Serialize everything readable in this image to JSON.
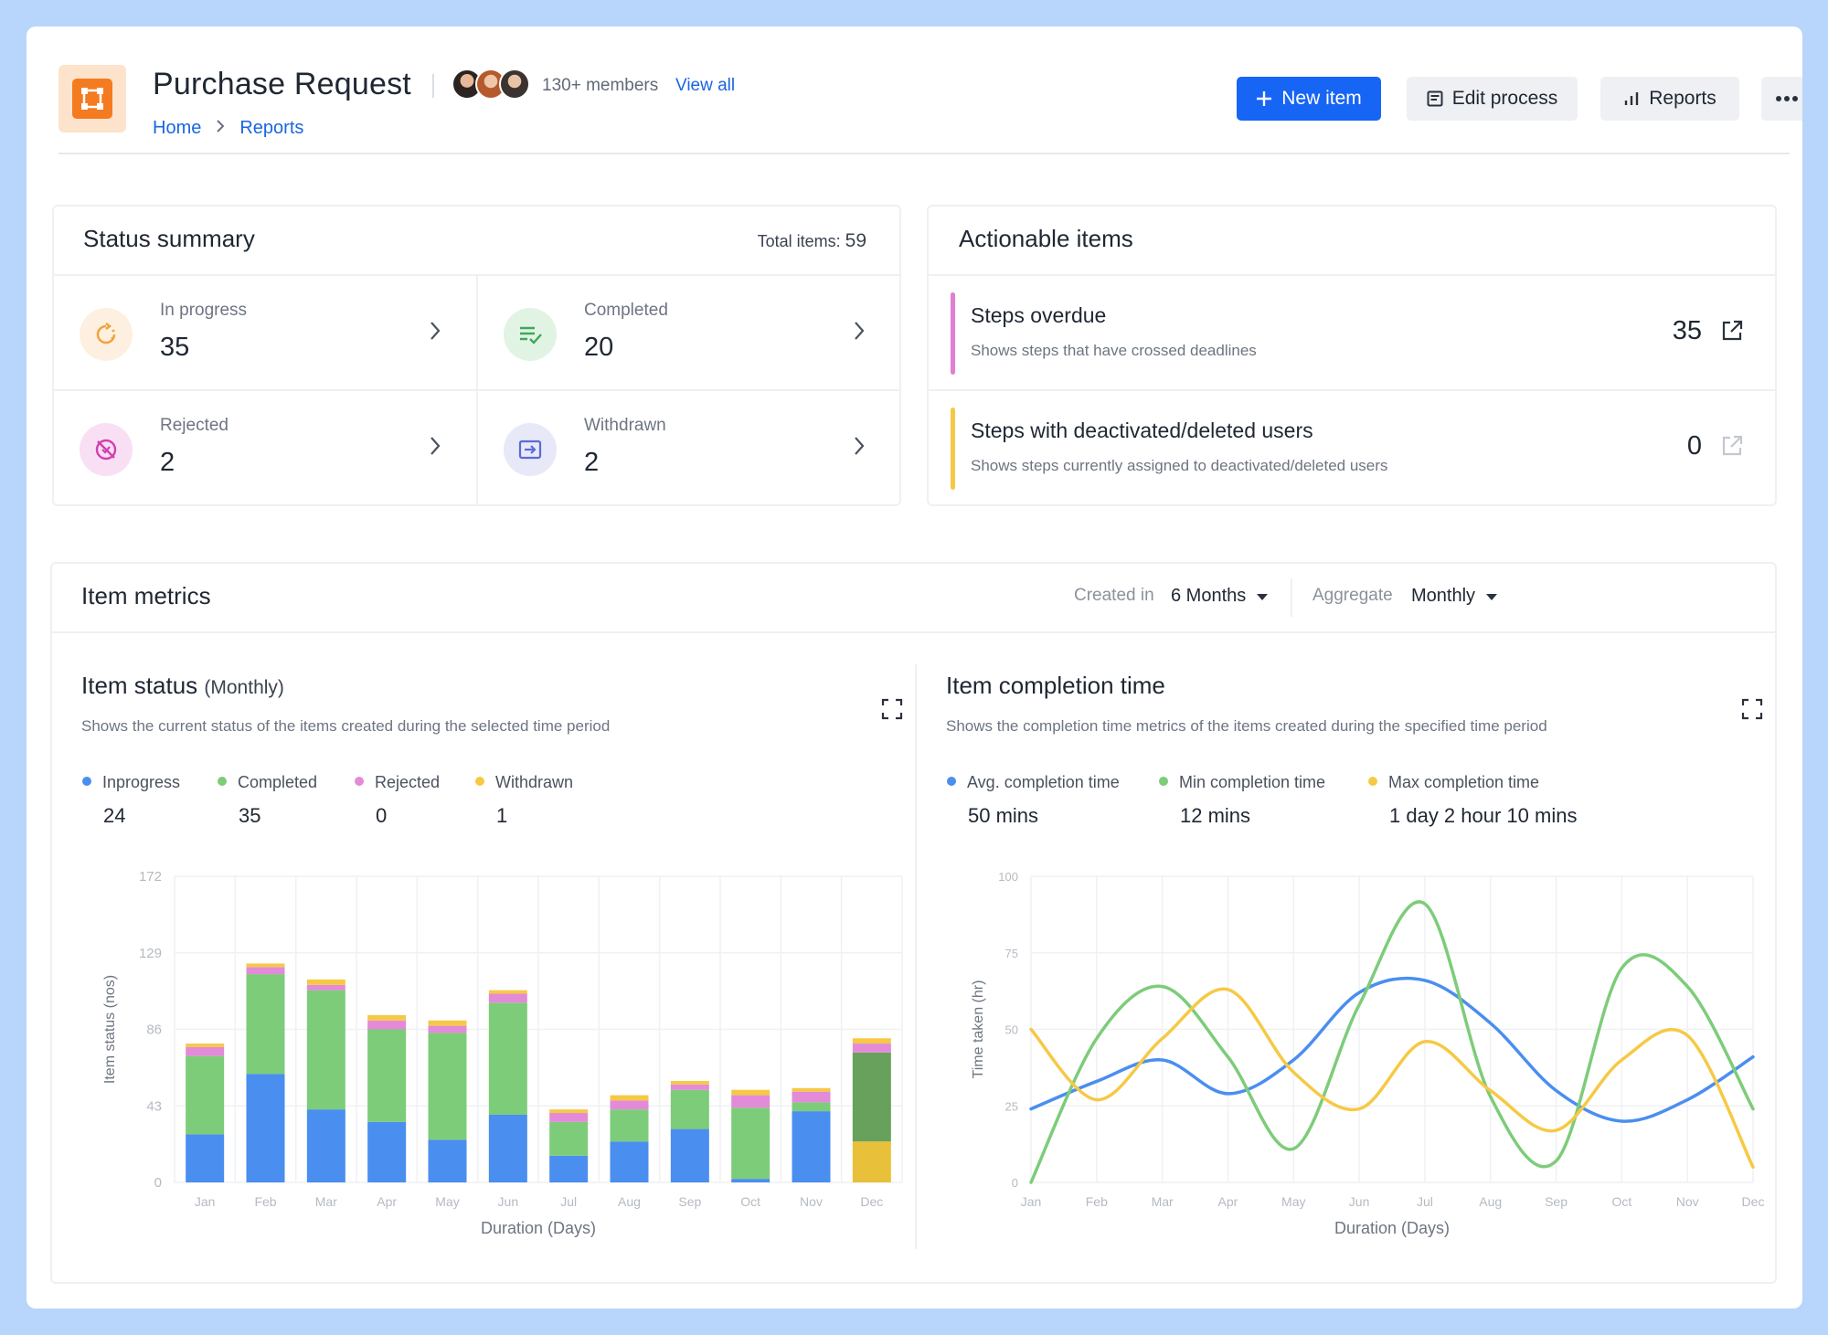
{
  "header": {
    "title": "Purchase Request",
    "members": "130+ members",
    "view_all": "View all",
    "breadcrumb": [
      "Home",
      "Reports"
    ],
    "new_item": "New item",
    "edit_process": "Edit process",
    "reports": "Reports"
  },
  "status_summary": {
    "title": "Status summary",
    "total_label": "Total items:",
    "total_value": "59",
    "items": [
      {
        "label": "In progress",
        "value": "35",
        "color": "#f2a33a"
      },
      {
        "label": "Completed",
        "value": "20",
        "color": "#3fa85a"
      },
      {
        "label": "Rejected",
        "value": "2",
        "color": "#d23fb0"
      },
      {
        "label": "Withdrawn",
        "value": "2",
        "color": "#5b6ad6"
      }
    ]
  },
  "actionable": {
    "title": "Actionable items",
    "items": [
      {
        "title": "Steps overdue",
        "desc": "Shows steps that have crossed deadlines",
        "value": "35",
        "color": "#e07fd4"
      },
      {
        "title": "Steps with deactivated/deleted users",
        "desc": "Shows steps currently assigned to deactivated/deleted users",
        "value": "0",
        "color": "#f6c945"
      }
    ]
  },
  "metrics": {
    "title": "Item metrics",
    "created_in_label": "Created in",
    "created_in_value": "6 Months",
    "aggregate_label": "Aggregate",
    "aggregate_value": "Monthly"
  },
  "status_chart": {
    "title": "Item status",
    "subtitle": "(Monthly)",
    "desc": "Shows the current status of the items created during the selected time period",
    "legend": [
      {
        "name": "Inprogress",
        "value": "24",
        "color": "#4a8ef0"
      },
      {
        "name": "Completed",
        "value": "35",
        "color": "#7dcc79"
      },
      {
        "name": "Rejected",
        "value": "0",
        "color": "#e38ad8"
      },
      {
        "name": "Withdrawn",
        "value": "1",
        "color": "#f6c945"
      }
    ]
  },
  "time_chart": {
    "title": "Item completion time",
    "desc": "Shows the completion time metrics of the items created during the specified time period",
    "legend": [
      {
        "name": "Avg. completion time",
        "value": "50 mins",
        "color": "#4a8ef0"
      },
      {
        "name": "Min completion time",
        "value": "12 mins",
        "color": "#7dcc79"
      },
      {
        "name": "Max completion time",
        "value": "1 day 2 hour 10 mins",
        "color": "#f6c945"
      }
    ]
  },
  "chart_data": [
    {
      "type": "bar",
      "stacked": true,
      "xlabel": "Duration (Days)",
      "ylabel": "Item status (nos)",
      "ylim": [
        0,
        172
      ],
      "yticks": [
        0,
        43,
        86,
        129,
        172
      ],
      "categories": [
        "Jan",
        "Feb",
        "Mar",
        "Apr",
        "May",
        "Jun",
        "Jul",
        "Aug",
        "Sep",
        "Oct",
        "Nov",
        "Dec"
      ],
      "series": [
        {
          "name": "Inprogress",
          "color": "#4a8ef0",
          "values": [
            27,
            61,
            41,
            34,
            24,
            38,
            15,
            23,
            30,
            2,
            40,
            23
          ]
        },
        {
          "name": "Completed",
          "color": "#7dcc79",
          "values": [
            44,
            56,
            67,
            52,
            60,
            63,
            19,
            18,
            22,
            40,
            5,
            50
          ]
        },
        {
          "name": "Rejected",
          "color": "#e38ad8",
          "values": [
            5,
            4,
            3,
            5,
            4,
            5,
            5,
            5,
            3,
            7,
            6,
            5
          ]
        },
        {
          "name": "Withdrawn",
          "color": "#f6c945",
          "values": [
            2,
            2,
            3,
            3,
            3,
            2,
            2,
            3,
            2,
            3,
            2,
            3
          ]
        }
      ],
      "dec_completed_color": "#67a15c",
      "dec_inprogress_color": "#e8c03a"
    },
    {
      "type": "line",
      "smooth": true,
      "xlabel": "Duration (Days)",
      "ylabel": "Time taken (hr)",
      "ylim": [
        0,
        100
      ],
      "yticks": [
        0,
        25,
        50,
        75,
        100
      ],
      "categories": [
        "Jan",
        "Feb",
        "Mar",
        "Apr",
        "May",
        "Jun",
        "Jul",
        "Aug",
        "Sep",
        "Oct",
        "Nov",
        "Dec"
      ],
      "series": [
        {
          "name": "Avg. completion time",
          "color": "#4a8ef0",
          "values": [
            24,
            33,
            40,
            29,
            40,
            62,
            66,
            52,
            30,
            20,
            27,
            41
          ]
        },
        {
          "name": "Min completion time",
          "color": "#7dcc79",
          "values": [
            0,
            47,
            64,
            41,
            11,
            58,
            91,
            28,
            7,
            70,
            64,
            24
          ]
        },
        {
          "name": "Max completion time",
          "color": "#f6c945",
          "values": [
            50,
            27,
            47,
            63,
            36,
            24,
            46,
            30,
            17,
            40,
            48,
            5
          ]
        }
      ]
    }
  ]
}
